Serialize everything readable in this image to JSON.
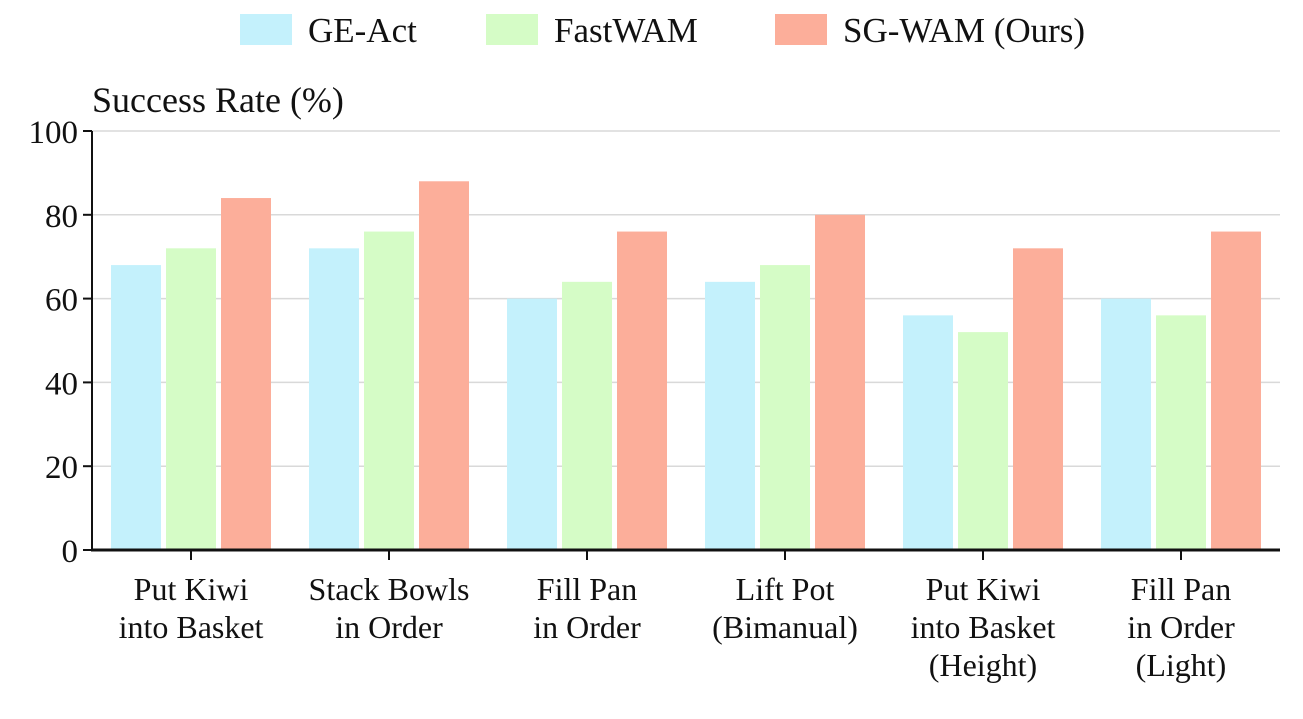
{
  "chart_data": {
    "type": "bar",
    "ylabel": "Success Rate (%)",
    "ylim": [
      0,
      100
    ],
    "yticks": [
      0,
      20,
      40,
      60,
      80,
      100
    ],
    "grid": true,
    "legend": "top-center",
    "categories": [
      [
        "Put Kiwi",
        "into Basket"
      ],
      [
        "Stack Bowls",
        "in Order"
      ],
      [
        "Fill Pan",
        "in Order"
      ],
      [
        "Lift Pot",
        "(Bimanual)"
      ],
      [
        "Put Kiwi",
        "into Basket",
        "(Height)"
      ],
      [
        "Fill Pan",
        "in Order",
        "(Light)"
      ]
    ],
    "series": [
      {
        "name": "GE-Act",
        "color": "#c4f1fc",
        "values": [
          68,
          72,
          60,
          64,
          56,
          60
        ]
      },
      {
        "name": "FastWAM",
        "color": "#d5fcc6",
        "values": [
          72,
          76,
          64,
          68,
          52,
          56
        ]
      },
      {
        "name": "SG-WAM (Ours)",
        "color": "#fcae9a",
        "values": [
          84,
          88,
          76,
          80,
          72,
          76
        ]
      }
    ]
  }
}
